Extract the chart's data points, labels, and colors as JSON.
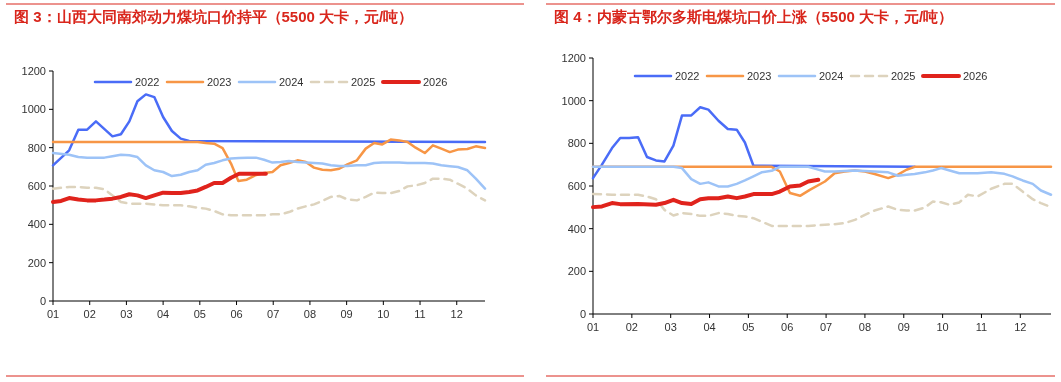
{
  "chart_data": [
    {
      "type": "line",
      "title": "图 3：山西大同南郊动力煤坑口价持平（5500 大卡，元/吨）",
      "xlim": [
        1,
        12.77
      ],
      "xticks": [
        {
          "value": 1,
          "label": "01"
        },
        {
          "value": 2,
          "label": "02"
        },
        {
          "value": 3,
          "label": "03"
        },
        {
          "value": 4,
          "label": "04"
        },
        {
          "value": 5,
          "label": "05"
        },
        {
          "value": 6,
          "label": "06"
        },
        {
          "value": 7,
          "label": "07"
        },
        {
          "value": 8,
          "label": "08"
        },
        {
          "value": 9,
          "label": "09"
        },
        {
          "value": 10,
          "label": "10"
        },
        {
          "value": 11,
          "label": "11"
        },
        {
          "value": 12,
          "label": "12"
        }
      ],
      "ylim": [
        0,
        1200
      ],
      "yticks": [
        0,
        200,
        400,
        600,
        800,
        1000,
        1200
      ],
      "grid": false,
      "legend": "top",
      "marker": "none",
      "line_style": "solid",
      "series": [
        {
          "name": "2022",
          "color": "#4a6cf7",
          "x": [
            1,
            1.44,
            1.69,
            1.93,
            2.17,
            2.62,
            2.85,
            3.08,
            3.3,
            3.53,
            3.76,
            4.0,
            4.24,
            4.48,
            4.71,
            12.77
          ],
          "values": [
            708,
            786,
            894,
            894,
            937,
            859,
            870,
            937,
            1042,
            1078,
            1064,
            960,
            887,
            847,
            835,
            830
          ]
        },
        {
          "name": "2023",
          "color": "#f79646",
          "x": [
            1,
            4.94,
            5.16,
            5.39,
            5.62,
            5.85,
            6.05,
            6.28,
            6.51,
            6.75,
            6.98,
            7.2,
            7.43,
            7.66,
            7.89,
            8.11,
            8.34,
            8.57,
            8.8,
            9.02,
            9.28,
            9.52,
            9.75,
            9.97,
            10.2,
            10.43,
            10.66,
            10.88,
            11.13,
            11.35,
            11.58,
            11.81,
            12.03,
            12.29,
            12.52,
            12.77
          ],
          "values": [
            830,
            830,
            824,
            821,
            798,
            717,
            626,
            633,
            656,
            668,
            673,
            708,
            720,
            734,
            725,
            696,
            685,
            682,
            690,
            713,
            734,
            795,
            824,
            817,
            842,
            838,
            830,
            800,
            772,
            812,
            795,
            777,
            790,
            793,
            807,
            798
          ]
        },
        {
          "name": "2024",
          "color": "#9dc3f7",
          "x": [
            1,
            1.44,
            1.69,
            1.93,
            2.4,
            2.62,
            2.85,
            3.08,
            3.3,
            3.53,
            3.76,
            4.0,
            4.24,
            4.48,
            4.71,
            4.94,
            5.16,
            5.39,
            5.62,
            5.85,
            6.07,
            6.3,
            6.53,
            6.75,
            6.98,
            7.2,
            7.43,
            7.66,
            7.89,
            8.11,
            8.34,
            8.57,
            8.8,
            9.02,
            9.28,
            9.52,
            9.75,
            9.97,
            10.43,
            10.66,
            11.13,
            11.35,
            11.58,
            11.81,
            12.03,
            12.29,
            12.52,
            12.77
          ],
          "values": [
            772,
            763,
            751,
            748,
            748,
            755,
            763,
            760,
            751,
            708,
            682,
            673,
            652,
            659,
            673,
            682,
            711,
            720,
            734,
            743,
            746,
            748,
            748,
            737,
            722,
            725,
            730,
            725,
            722,
            720,
            717,
            708,
            704,
            704,
            708,
            708,
            720,
            723,
            723,
            720,
            720,
            717,
            708,
            703,
            699,
            682,
            638,
            586
          ]
        },
        {
          "name": "2025",
          "color": "#ddd3bd",
          "line_style": "dashed",
          "x": [
            1,
            1.44,
            1.69,
            1.93,
            2.17,
            2.4,
            2.62,
            2.85,
            3.08,
            3.53,
            3.76,
            4.0,
            4.48,
            4.71,
            4.94,
            5.16,
            5.39,
            5.62,
            5.85,
            6.75,
            6.98,
            7.2,
            7.43,
            7.66,
            7.89,
            8.11,
            8.34,
            8.57,
            8.8,
            9.02,
            9.28,
            9.52,
            9.75,
            9.97,
            10.2,
            10.43,
            10.66,
            10.88,
            11.13,
            11.35,
            11.58,
            11.81,
            12.03,
            12.29,
            12.52,
            12.77
          ],
          "values": [
            586,
            595,
            595,
            591,
            591,
            583,
            551,
            517,
            508,
            508,
            503,
            499,
            499,
            494,
            487,
            482,
            470,
            452,
            447,
            447,
            452,
            452,
            464,
            482,
            494,
            504,
            522,
            543,
            548,
            530,
            525,
            543,
            565,
            563,
            563,
            574,
            598,
            603,
            616,
            638,
            638,
            633,
            612,
            586,
            551,
            525
          ]
        },
        {
          "name": "2026",
          "color": "#e0231c",
          "x": [
            1,
            1.22,
            1.44,
            1.69,
            1.93,
            2.17,
            2.4,
            2.62,
            2.85,
            3.08,
            3.3,
            3.53,
            3.76,
            4.0,
            4.24,
            4.48,
            4.71,
            4.94,
            5.16,
            5.39,
            5.62,
            5.85,
            6.07,
            6.3,
            6.53,
            6.8
          ],
          "values": [
            517,
            522,
            537,
            530,
            525,
            525,
            529,
            534,
            543,
            557,
            551,
            537,
            551,
            565,
            563,
            563,
            569,
            577,
            595,
            616,
            616,
            643,
            664,
            664,
            664,
            664
          ]
        }
      ]
    },
    {
      "type": "line",
      "title": "图 4：内蒙古鄂尔多斯电煤坑口价上涨（5500 大卡，元/吨）",
      "xlim": [
        1,
        12.79
      ],
      "xticks": [
        {
          "value": 1,
          "label": "01"
        },
        {
          "value": 2,
          "label": "02"
        },
        {
          "value": 3,
          "label": "03"
        },
        {
          "value": 4,
          "label": "04"
        },
        {
          "value": 5,
          "label": "05"
        },
        {
          "value": 6,
          "label": "06"
        },
        {
          "value": 7,
          "label": "07"
        },
        {
          "value": 8,
          "label": "08"
        },
        {
          "value": 9,
          "label": "09"
        },
        {
          "value": 10,
          "label": "10"
        },
        {
          "value": 11,
          "label": "11"
        },
        {
          "value": 12,
          "label": "12"
        }
      ],
      "ylim": [
        0,
        1200
      ],
      "yticks": [
        0,
        200,
        400,
        600,
        800,
        1000,
        1200
      ],
      "grid": false,
      "legend": "top",
      "marker": "none",
      "line_style": "solid",
      "series": [
        {
          "name": "2022",
          "color": "#4a6cf7",
          "x": [
            1,
            1.23,
            1.49,
            1.7,
            1.93,
            2.16,
            2.39,
            2.62,
            2.84,
            3.07,
            3.29,
            3.53,
            3.76,
            3.97,
            4.23,
            4.47,
            4.7,
            4.91,
            5.13,
            9.28
          ],
          "values": [
            637,
            700,
            778,
            825,
            825,
            829,
            736,
            720,
            715,
            789,
            930,
            931,
            969,
            958,
            906,
            867,
            864,
            804,
            695,
            690
          ]
        },
        {
          "name": "2023",
          "color": "#f79646",
          "x": [
            1,
            5.6,
            5.81,
            6.07,
            6.33,
            6.58,
            6.97,
            7.22,
            7.48,
            7.74,
            8.0,
            8.25,
            8.6,
            8.85,
            9.07,
            9.28,
            12.79
          ],
          "values": [
            690,
            690,
            668,
            567,
            554,
            582,
            621,
            660,
            668,
            673,
            668,
            656,
            637,
            653,
            676,
            690,
            690
          ]
        },
        {
          "name": "2024",
          "color": "#9dc3f7",
          "x": [
            1,
            3.07,
            3.29,
            3.53,
            3.76,
            3.97,
            4.23,
            4.47,
            4.7,
            4.91,
            5.13,
            5.34,
            5.6,
            5.81,
            6.54,
            6.75,
            6.97,
            7.22,
            7.74,
            8.25,
            8.6,
            8.85,
            9.07,
            9.28,
            9.54,
            9.75,
            9.96,
            10.18,
            10.43,
            10.9,
            11.25,
            11.59,
            11.8,
            12.06,
            12.32,
            12.53,
            12.79
          ],
          "values": [
            690,
            690,
            684,
            632,
            610,
            617,
            598,
            598,
            610,
            626,
            645,
            664,
            671,
            690,
            690,
            679,
            668,
            668,
            673,
            668,
            664,
            648,
            653,
            656,
            664,
            673,
            684,
            673,
            660,
            660,
            664,
            657,
            645,
            626,
            610,
            579,
            559
          ]
        },
        {
          "name": "2025",
          "color": "#ddd3bd",
          "line_style": "dashed",
          "x": [
            1,
            1.49,
            2.16,
            2.39,
            2.62,
            2.84,
            3.07,
            3.29,
            3.53,
            3.76,
            3.97,
            4.23,
            4.47,
            4.7,
            4.91,
            5.13,
            5.34,
            5.6,
            5.81,
            6.54,
            6.97,
            7.22,
            7.48,
            7.74,
            8.0,
            8.25,
            8.6,
            8.85,
            9.07,
            9.28,
            9.54,
            9.75,
            9.96,
            10.18,
            10.43,
            10.65,
            10.9,
            11.25,
            11.59,
            11.8,
            12.06,
            12.32,
            12.53,
            12.79
          ],
          "values": [
            563,
            559,
            559,
            551,
            538,
            488,
            462,
            473,
            469,
            460,
            460,
            473,
            469,
            460,
            457,
            449,
            433,
            413,
            413,
            413,
            418,
            421,
            426,
            441,
            465,
            485,
            504,
            488,
            485,
            485,
            499,
            527,
            524,
            512,
            523,
            559,
            551,
            587,
            610,
            610,
            574,
            538,
            520,
            501
          ]
        },
        {
          "name": "2026",
          "color": "#e0231c",
          "x": [
            1,
            1.23,
            1.49,
            1.7,
            2.16,
            2.62,
            2.84,
            3.07,
            3.29,
            3.53,
            3.76,
            3.97,
            4.23,
            4.47,
            4.7,
            4.91,
            5.13,
            5.6,
            5.81,
            6.07,
            6.33,
            6.54,
            6.8
          ],
          "values": [
            501,
            504,
            520,
            515,
            516,
            512,
            520,
            535,
            520,
            516,
            538,
            543,
            543,
            551,
            543,
            551,
            562,
            562,
            574,
            598,
            602,
            621,
            629
          ]
        }
      ]
    }
  ]
}
